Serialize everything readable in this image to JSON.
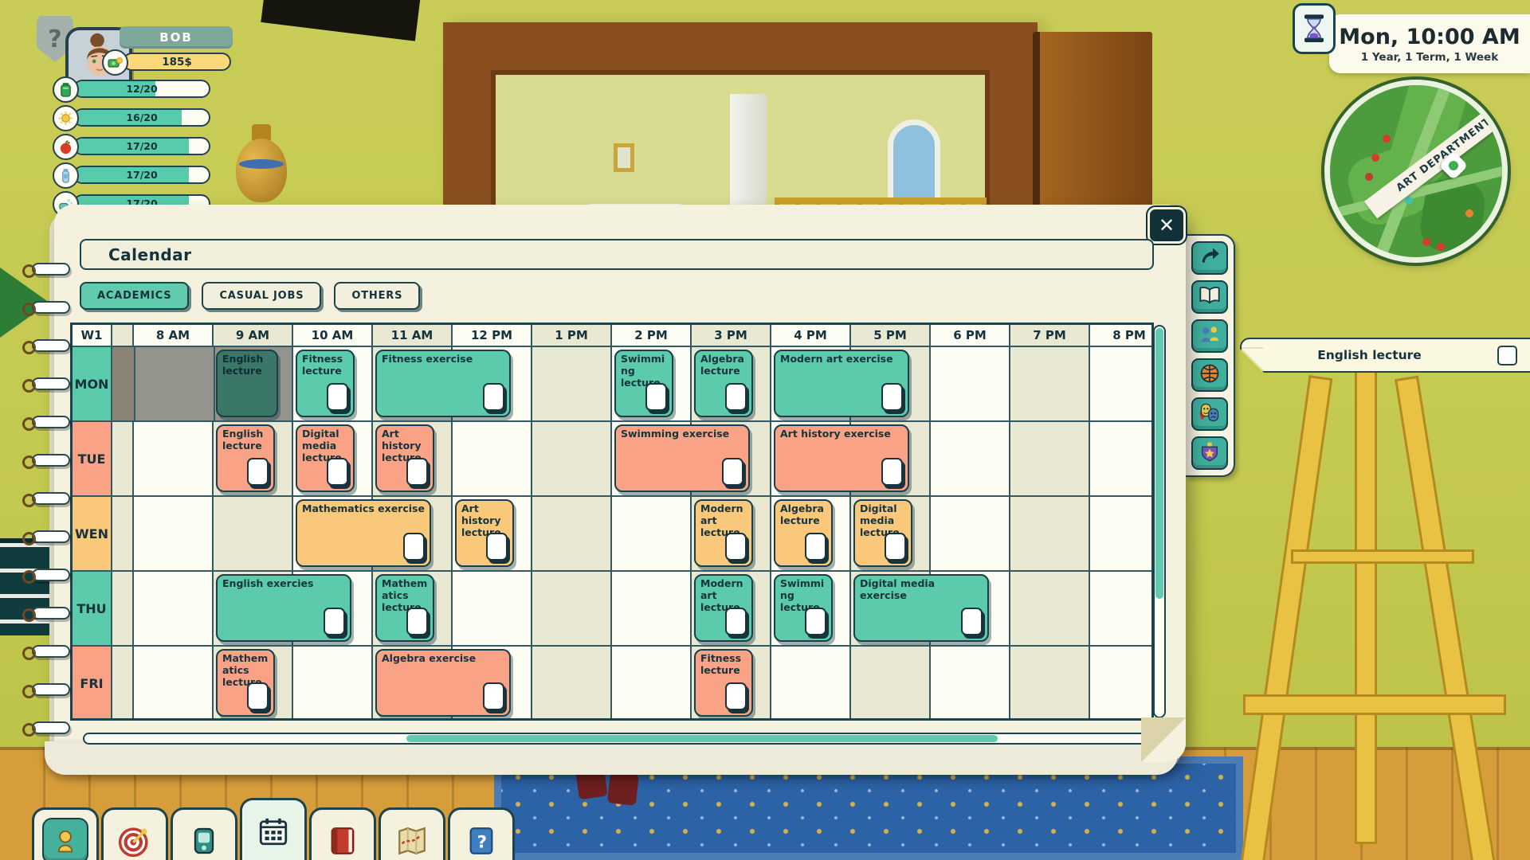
{
  "palette": {
    "ink": "#16323c",
    "paper": "#f4f2df",
    "teal_event": "#5bcbab",
    "salmon_event": "#f9a285",
    "yellow_event": "#f9c87a",
    "current_event": "#3a7767",
    "active_tab": "#62cbae"
  },
  "help_button": {
    "label": "?"
  },
  "character": {
    "name": "BOB",
    "money": "185$",
    "stats": [
      {
        "icon": "energy-battery-icon",
        "value": "12/20",
        "pct": 60
      },
      {
        "icon": "mood-sun-icon",
        "value": "16/20",
        "pct": 80
      },
      {
        "icon": "food-apple-icon",
        "value": "17/20",
        "pct": 85
      },
      {
        "icon": "thirst-bottle-icon",
        "value": "17/20",
        "pct": 85
      },
      {
        "icon": "hygiene-icon",
        "value": "17/20",
        "pct": 85
      }
    ]
  },
  "clock": {
    "datetime": "Mon, 10:00 AM",
    "period": "1 Year, 1 Term, 1 Week"
  },
  "minimap": {
    "location_label": "ART DEPARTMENT"
  },
  "task_tracker": {
    "label": "English lecture",
    "checked": false
  },
  "calendar_window": {
    "title": "Calendar",
    "close_label": "✕",
    "tabs": [
      {
        "label": "ACADEMICS",
        "active": true
      },
      {
        "label": "CASUAL JOBS",
        "active": false
      },
      {
        "label": "OTHERS",
        "active": false
      }
    ],
    "week": "W1",
    "times": [
      "8 AM",
      "9 AM",
      "10 AM",
      "11 AM",
      "12 PM",
      "1 PM",
      "2 PM",
      "3 PM",
      "4 PM",
      "5 PM",
      "6 PM",
      "7 PM",
      "8 PM"
    ],
    "days": [
      {
        "label": "MON",
        "color": "#5bcbab"
      },
      {
        "label": "TUE",
        "color": "#f9a285"
      },
      {
        "label": "WEN",
        "color": "#f9c87a"
      },
      {
        "label": "THU",
        "color": "#5bcbab"
      },
      {
        "label": "FRI",
        "color": "#f9a285"
      }
    ],
    "past": {
      "day": "MON",
      "from": "8 AM",
      "to": "10 AM"
    },
    "events": [
      {
        "day": "MON",
        "start": "9 AM",
        "hours": 1,
        "label": "English lecture",
        "state": "current",
        "checkbox": false
      },
      {
        "day": "MON",
        "start": "10 AM",
        "hours": 1,
        "label": "Fitness lecture",
        "checkbox": true
      },
      {
        "day": "MON",
        "start": "11 AM",
        "hours": 2,
        "label": "Fitness exercise",
        "checkbox": true
      },
      {
        "day": "MON",
        "start": "2 PM",
        "hours": 1,
        "label": "Swimming lecture",
        "checkbox": true
      },
      {
        "day": "MON",
        "start": "3 PM",
        "hours": 1,
        "label": "Algebra lecture",
        "checkbox": true
      },
      {
        "day": "MON",
        "start": "4 PM",
        "hours": 2,
        "label": "Modern art exercise",
        "checkbox": true
      },
      {
        "day": "TUE",
        "start": "9 AM",
        "hours": 1,
        "label": "English lecture",
        "checkbox": true
      },
      {
        "day": "TUE",
        "start": "10 AM",
        "hours": 1,
        "label": "Digital media lecture",
        "checkbox": true
      },
      {
        "day": "TUE",
        "start": "11 AM",
        "hours": 1,
        "label": "Art history lecture",
        "checkbox": true
      },
      {
        "day": "TUE",
        "start": "2 PM",
        "hours": 2,
        "label": "Swimming exercise",
        "checkbox": true
      },
      {
        "day": "TUE",
        "start": "4 PM",
        "hours": 2,
        "label": "Art history exercise",
        "checkbox": true
      },
      {
        "day": "WEN",
        "start": "10 AM",
        "hours": 2,
        "label": "Mathematics exercise",
        "checkbox": true
      },
      {
        "day": "WEN",
        "start": "12 PM",
        "hours": 1,
        "label": "Art history lecture",
        "checkbox": true
      },
      {
        "day": "WEN",
        "start": "3 PM",
        "hours": 1,
        "label": "Modern art lecture",
        "checkbox": true
      },
      {
        "day": "WEN",
        "start": "4 PM",
        "hours": 1,
        "label": "Algebra lecture",
        "checkbox": true
      },
      {
        "day": "WEN",
        "start": "5 PM",
        "hours": 1,
        "label": "Digital media lecture",
        "checkbox": true
      },
      {
        "day": "THU",
        "start": "9 AM",
        "hours": 2,
        "label": "English exercies",
        "checkbox": true
      },
      {
        "day": "THU",
        "start": "11 AM",
        "hours": 1,
        "label": "Mathematics lecture",
        "checkbox": true
      },
      {
        "day": "THU",
        "start": "3 PM",
        "hours": 1,
        "label": "Modern art lecture",
        "checkbox": true
      },
      {
        "day": "THU",
        "start": "4 PM",
        "hours": 1,
        "label": "Swimming lecture",
        "checkbox": true
      },
      {
        "day": "THU",
        "start": "5 PM",
        "hours": 2,
        "label": "Digital media exercise",
        "checkbox": true
      },
      {
        "day": "FRI",
        "start": "9 AM",
        "hours": 1,
        "label": "Mathematics lecture",
        "checkbox": true
      },
      {
        "day": "FRI",
        "start": "11 AM",
        "hours": 2,
        "label": "Algebra exercise",
        "checkbox": true
      },
      {
        "day": "FRI",
        "start": "3 PM",
        "hours": 1,
        "label": "Fitness lecture",
        "checkbox": true
      }
    ]
  },
  "right_toolbar": [
    {
      "icon": "redo-arrow-icon"
    },
    {
      "icon": "course-book-icon"
    },
    {
      "icon": "relationships-icon"
    },
    {
      "icon": "sports-icon"
    },
    {
      "icon": "drama-icon"
    },
    {
      "icon": "achievement-badge-icon"
    }
  ],
  "bottom_toolbar": [
    {
      "icon": "character-icon",
      "active": false
    },
    {
      "icon": "goals-target-icon",
      "active": false
    },
    {
      "icon": "phone-icon",
      "active": false
    },
    {
      "icon": "calendar-icon",
      "active": true
    },
    {
      "icon": "journal-book-icon",
      "active": false
    },
    {
      "icon": "map-icon",
      "active": false
    },
    {
      "icon": "help-book-icon",
      "active": false
    }
  ]
}
